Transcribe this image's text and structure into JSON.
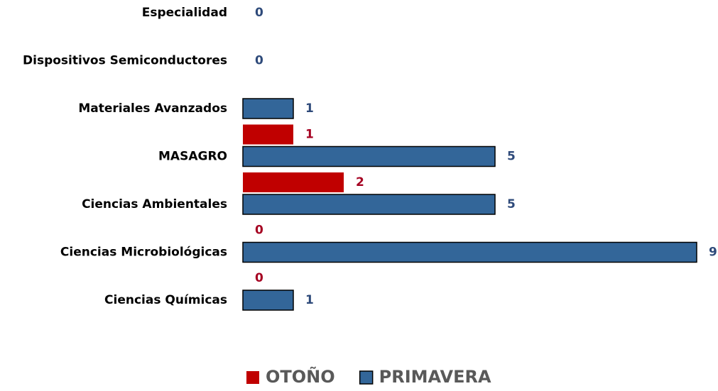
{
  "chart_data": {
    "type": "bar",
    "orientation": "horizontal",
    "categories": [
      "Especialidad",
      "Dispositivos Semiconductores",
      "Materiales Avanzados",
      "MASAGRO",
      "Ciencias Ambientales",
      "Ciencias Microbiológicas",
      "Ciencias Químicas"
    ],
    "series": [
      {
        "name": "OTOÑO",
        "color": "#c00000",
        "label_color": "#a50021",
        "values": [
          null,
          null,
          null,
          1,
          2,
          0,
          0
        ]
      },
      {
        "name": "PRIMAVERA",
        "color": "#336699",
        "label_color": "#2e4a7a",
        "values": [
          0,
          0,
          1,
          5,
          5,
          9,
          1
        ]
      }
    ],
    "legend": "bottom"
  }
}
